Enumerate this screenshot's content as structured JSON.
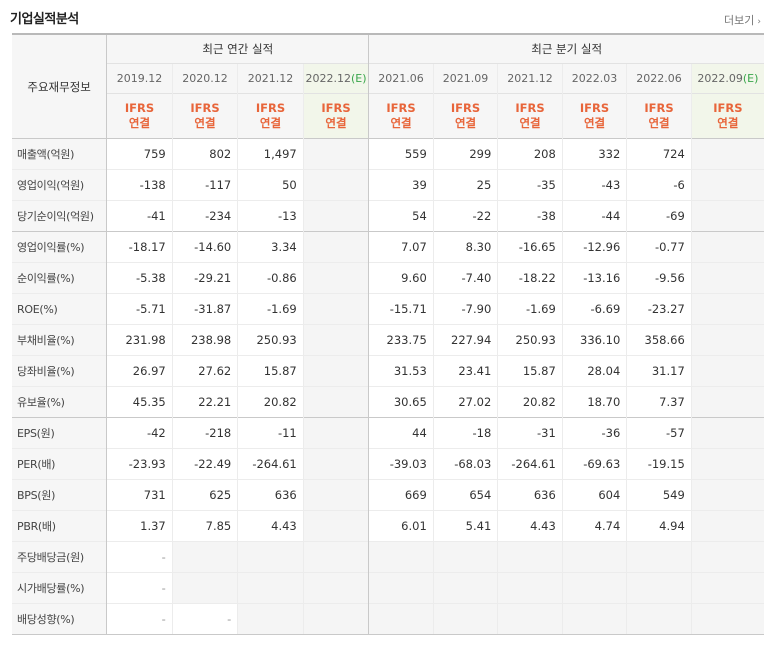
{
  "section": {
    "title": "기업실적분석",
    "more_label": "더보기",
    "more_icon": "chevron-right-icon"
  },
  "table": {
    "label_header": "주요재무정보",
    "group_annual": "최근 연간 실적",
    "group_quarter": "최근 분기 실적",
    "annual_periods": [
      "2019.12",
      "2020.12",
      "2021.12",
      "2022.12"
    ],
    "quarter_periods": [
      "2021.06",
      "2021.09",
      "2021.12",
      "2022.03",
      "2022.06",
      "2022.09"
    ],
    "estimate_tag": "(E)",
    "ifrs_top": "IFRS",
    "ifrs_bottom": "연결",
    "rows": [
      {
        "label": "매출액(억원)",
        "annual": [
          "759",
          "802",
          "1,497",
          ""
        ],
        "quarter": [
          "559",
          "299",
          "208",
          "332",
          "724",
          ""
        ]
      },
      {
        "label": "영업이익(억원)",
        "annual": [
          "-138",
          "-117",
          "50",
          ""
        ],
        "quarter": [
          "39",
          "25",
          "-35",
          "-43",
          "-6",
          ""
        ]
      },
      {
        "label": "당기순이익(억원)",
        "annual": [
          "-41",
          "-234",
          "-13",
          ""
        ],
        "quarter": [
          "54",
          "-22",
          "-38",
          "-44",
          "-69",
          ""
        ]
      },
      {
        "label": "영업이익률(%)",
        "annual": [
          "-18.17",
          "-14.60",
          "3.34",
          ""
        ],
        "quarter": [
          "7.07",
          "8.30",
          "-16.65",
          "-12.96",
          "-0.77",
          ""
        ]
      },
      {
        "label": "순이익률(%)",
        "annual": [
          "-5.38",
          "-29.21",
          "-0.86",
          ""
        ],
        "quarter": [
          "9.60",
          "-7.40",
          "-18.22",
          "-13.16",
          "-9.56",
          ""
        ]
      },
      {
        "label": "ROE(%)",
        "annual": [
          "-5.71",
          "-31.87",
          "-1.69",
          ""
        ],
        "quarter": [
          "-15.71",
          "-7.90",
          "-1.69",
          "-6.69",
          "-23.27",
          ""
        ]
      },
      {
        "label": "부채비율(%)",
        "annual": [
          "231.98",
          "238.98",
          "250.93",
          ""
        ],
        "quarter": [
          "233.75",
          "227.94",
          "250.93",
          "336.10",
          "358.66",
          ""
        ]
      },
      {
        "label": "당좌비율(%)",
        "annual": [
          "26.97",
          "27.62",
          "15.87",
          ""
        ],
        "quarter": [
          "31.53",
          "23.41",
          "15.87",
          "28.04",
          "31.17",
          ""
        ]
      },
      {
        "label": "유보율(%)",
        "annual": [
          "45.35",
          "22.21",
          "20.82",
          ""
        ],
        "quarter": [
          "30.65",
          "27.02",
          "20.82",
          "18.70",
          "7.37",
          ""
        ]
      },
      {
        "label": "EPS(원)",
        "annual": [
          "-42",
          "-218",
          "-11",
          ""
        ],
        "quarter": [
          "44",
          "-18",
          "-31",
          "-36",
          "-57",
          ""
        ]
      },
      {
        "label": "PER(배)",
        "annual": [
          "-23.93",
          "-22.49",
          "-264.61",
          ""
        ],
        "quarter": [
          "-39.03",
          "-68.03",
          "-264.61",
          "-69.63",
          "-19.15",
          ""
        ]
      },
      {
        "label": "BPS(원)",
        "annual": [
          "731",
          "625",
          "636",
          ""
        ],
        "quarter": [
          "669",
          "654",
          "636",
          "604",
          "549",
          ""
        ]
      },
      {
        "label": "PBR(배)",
        "annual": [
          "1.37",
          "7.85",
          "4.43",
          ""
        ],
        "quarter": [
          "6.01",
          "5.41",
          "4.43",
          "4.74",
          "4.94",
          ""
        ]
      },
      {
        "label": "주당배당금(원)",
        "annual": [
          "-",
          "",
          "",
          ""
        ],
        "quarter": [
          "",
          "",
          "",
          "",
          "",
          ""
        ]
      },
      {
        "label": "시가배당률(%)",
        "annual": [
          "-",
          "",
          "",
          ""
        ],
        "quarter": [
          "",
          "",
          "",
          "",
          "",
          ""
        ]
      },
      {
        "label": "배당성향(%)",
        "annual": [
          "-",
          "-",
          "",
          ""
        ],
        "quarter": [
          "",
          "",
          "",
          "",
          "",
          ""
        ]
      }
    ]
  },
  "colors": {
    "negative": "#e0302a",
    "ifrs": "#e8653a",
    "estimate": "#3aa64b",
    "header_bg": "#f6f6f6",
    "estimate_bg": "#f2f6ea"
  }
}
